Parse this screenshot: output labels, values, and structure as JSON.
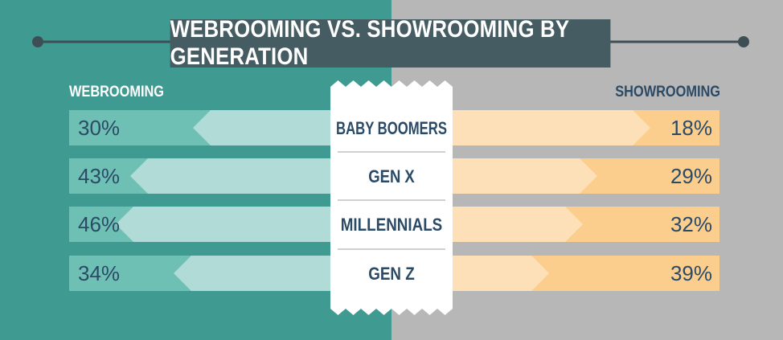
{
  "header": {
    "title": "WEBROOMING VS. SHOWROOMING BY GENERATION"
  },
  "colors": {
    "left_background": "#3f9a92",
    "right_background": "#b7b7b7",
    "webrooming_dark": "#6fc0b4",
    "webrooming_light": "#b1dbd6",
    "showrooming_dark": "#fcce8e",
    "showrooming_light": "#fde0b7",
    "title_background": "#465c63",
    "value_text": "#2b4a66",
    "ticket": "#ffffff"
  },
  "chart_data": {
    "type": "bar",
    "title": "WEBROOMING VS. SHOWROOMING BY GENERATION",
    "categories": [
      "BABY BOOMERS",
      "GEN X",
      "MILLENNIALS",
      "GEN Z"
    ],
    "series": [
      {
        "name": "WEBROOMING",
        "values": [
          30,
          43,
          46,
          34
        ],
        "labels": [
          "30%",
          "43%",
          "46%",
          "34%"
        ]
      },
      {
        "name": "SHOWROOMING",
        "values": [
          18,
          29,
          32,
          39
        ],
        "labels": [
          "18%",
          "29%",
          "32%",
          "39%"
        ]
      }
    ],
    "unit": "%",
    "xlabel": "",
    "ylabel": "",
    "legend": "top-left / top-right",
    "grid": false
  }
}
